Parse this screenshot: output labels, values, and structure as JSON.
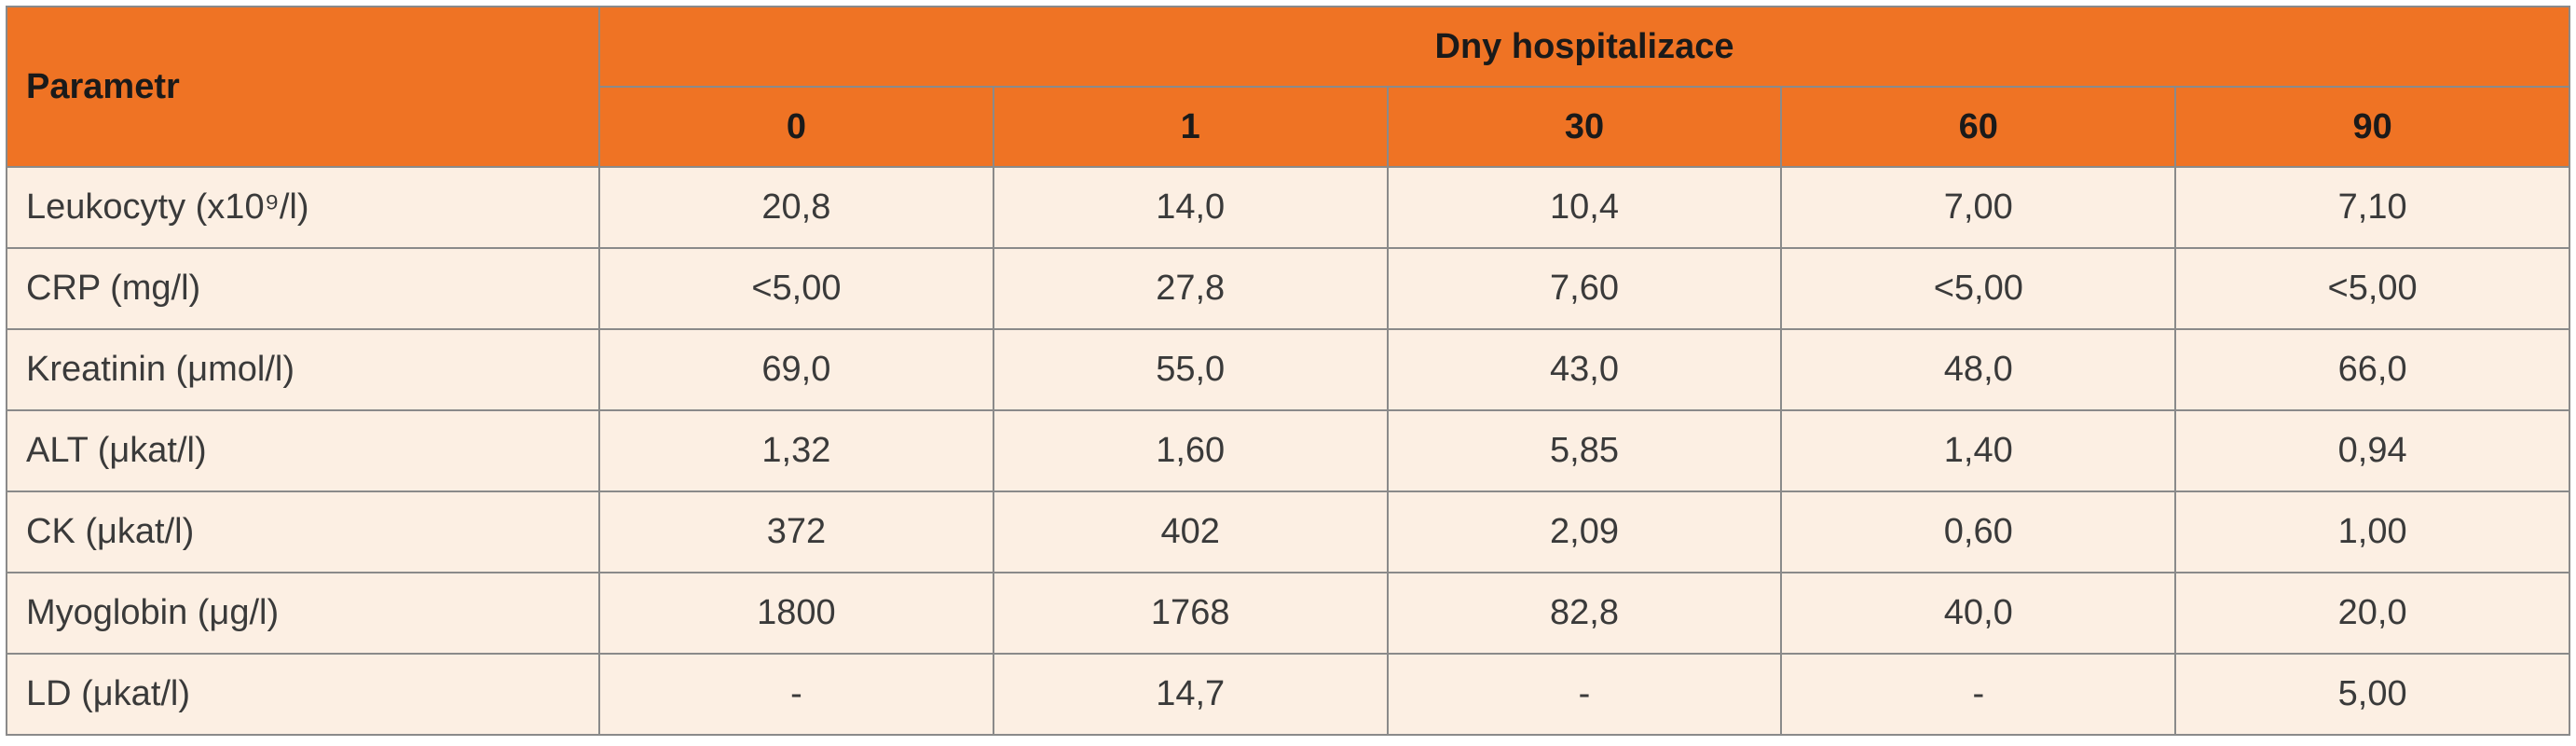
{
  "table": {
    "param_header": "Parametr",
    "group_header": "Dny hospitalizace",
    "days": [
      "0",
      "1",
      "30",
      "60",
      "90"
    ],
    "rows": [
      {
        "label": "Leukocyty (x10⁹/l)",
        "values": [
          "20,8",
          "14,0",
          "10,4",
          "7,00",
          "7,10"
        ]
      },
      {
        "label": "CRP (mg/l)",
        "values": [
          "<5,00",
          "27,8",
          "7,60",
          "<5,00",
          "<5,00"
        ]
      },
      {
        "label": "Kreatinin (μmol/l)",
        "values": [
          "69,0",
          "55,0",
          "43,0",
          "48,0",
          "66,0"
        ]
      },
      {
        "label": "ALT (μkat/l)",
        "values": [
          "1,32",
          "1,60",
          "5,85",
          "1,40",
          "0,94"
        ]
      },
      {
        "label": "CK (μkat/l)",
        "values": [
          "372",
          "402",
          "2,09",
          "0,60",
          "1,00"
        ]
      },
      {
        "label": "Myoglobin (μg/l)",
        "values": [
          "1800",
          "1768",
          "82,8",
          "40,0",
          "20,0"
        ]
      },
      {
        "label": "LD (μkat/l)",
        "values": [
          "-",
          "14,7",
          "-",
          "-",
          "5,00"
        ]
      }
    ]
  },
  "colors": {
    "header_bg": "#ef7324",
    "body_bg": "#fcefe3",
    "border": "#8a8a8a"
  }
}
